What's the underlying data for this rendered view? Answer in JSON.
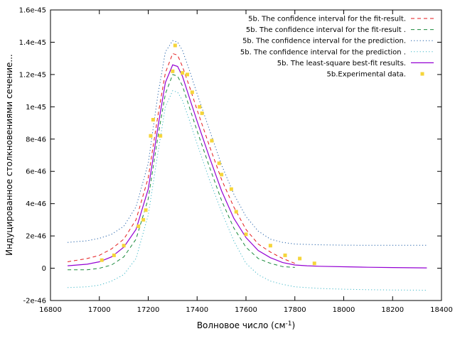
{
  "chart_data": {
    "type": "line",
    "xlabel": "Волновое число (см",
    "xlabel_sup": "-1",
    "xlabel_end": ")",
    "ylabel": "Индуцированное столкновениями сечение...",
    "xlim": [
      16800,
      18400
    ],
    "ylim": [
      -2e-46,
      1.6e-45
    ],
    "x_ticks": [
      16800,
      17000,
      17200,
      17400,
      17600,
      17800,
      18000,
      18200,
      18400
    ],
    "x_tick_labels": [
      "16800",
      "17000",
      "17200",
      "17400",
      "17600",
      "17800",
      "18000",
      "18200",
      "18400"
    ],
    "y_ticks": [
      -2e-46,
      0,
      2e-46,
      4e-46,
      6e-46,
      8e-46,
      1e-45,
      1.2e-45,
      1.4e-45,
      1.6e-45
    ],
    "y_tick_labels": [
      "-2e-46",
      "0",
      "2e-46",
      "4e-46",
      "6e-46",
      "8e-46",
      "1e-45",
      "1.2e-45",
      "1.4e-45",
      "1.6e-45"
    ],
    "grid": false,
    "legend_position": "top-right",
    "series": [
      {
        "name": "5b. The confidence interval for the fit-result.",
        "style": "dashed",
        "color": "#e41a1c",
        "x": [
          16870,
          16950,
          17000,
          17050,
          17100,
          17150,
          17200,
          17240,
          17270,
          17300,
          17320,
          17340,
          17370,
          17400,
          17450,
          17500,
          17550,
          17600,
          17650,
          17700,
          17750,
          17800
        ],
        "y": [
          4e-47,
          6e-47,
          8e-47,
          1.2e-46,
          1.8e-46,
          3e-46,
          5.6e-46,
          9.5e-46,
          1.21e-45,
          1.33e-45,
          1.32e-45,
          1.25e-45,
          1.12e-45,
          9.8e-46,
          7.6e-46,
          5.5e-46,
          3.8e-46,
          2.4e-46,
          1.5e-46,
          1e-46,
          6e-47,
          3e-47
        ]
      },
      {
        "name": "5b. The confidence interval for the fit-result .",
        "style": "dashed",
        "color": "#1a8a3c",
        "x": [
          16870,
          16950,
          17000,
          17050,
          17100,
          17150,
          17200,
          17240,
          17270,
          17300,
          17320,
          17340,
          17370,
          17400,
          17450,
          17500,
          17550,
          17600,
          17650,
          17700,
          17750,
          17800
        ],
        "y": [
          -1e-47,
          -1e-47,
          0,
          2e-47,
          7e-47,
          1.8e-46,
          4.3e-46,
          8.2e-46,
          1.08e-45,
          1.2e-45,
          1.19e-45,
          1.13e-45,
          9.9e-46,
          8.5e-46,
          6.3e-46,
          4.2e-46,
          2.5e-46,
          1.3e-46,
          6e-47,
          3e-47,
          1e-47,
          5e-48
        ]
      },
      {
        "name": "5b. The confidence interval for the prediction.",
        "style": "dotted",
        "color": "#1f5fa8",
        "x": [
          16870,
          16950,
          17000,
          17050,
          17100,
          17150,
          17200,
          17240,
          17270,
          17300,
          17320,
          17340,
          17370,
          17400,
          17450,
          17500,
          17550,
          17600,
          17650,
          17700,
          17750,
          17800,
          17900,
          18000,
          18100,
          18200,
          18340
        ],
        "y": [
          1.6e-46,
          1.7e-46,
          1.85e-46,
          2.1e-46,
          2.6e-46,
          3.8e-46,
          6.5e-46,
          1.08e-45,
          1.34e-45,
          1.41e-45,
          1.4e-45,
          1.35e-45,
          1.22e-45,
          1.08e-45,
          8.6e-46,
          6.4e-46,
          4.6e-46,
          3.2e-46,
          2.3e-46,
          1.8e-46,
          1.6e-46,
          1.5e-46,
          1.45e-46,
          1.43e-46,
          1.42e-46,
          1.42e-46,
          1.42e-46
        ]
      },
      {
        "name": "5b. The confidence interval for the prediction .",
        "style": "dotted",
        "color": "#3fb8c8",
        "x": [
          16870,
          16950,
          17000,
          17050,
          17100,
          17150,
          17200,
          17240,
          17270,
          17300,
          17320,
          17340,
          17370,
          17400,
          17450,
          17500,
          17550,
          17600,
          17650,
          17700,
          17750,
          17800,
          17900,
          18000,
          18100,
          18200,
          18340
        ],
        "y": [
          -1.2e-46,
          -1.15e-46,
          -1.05e-46,
          -8e-47,
          -4e-47,
          6e-47,
          3.3e-46,
          7.2e-46,
          1e-45,
          1.1e-45,
          1.09e-45,
          1.04e-45,
          9.1e-46,
          7.7e-46,
          5.5e-46,
          3.5e-46,
          1.7e-46,
          3e-47,
          -4e-47,
          -8e-47,
          -1e-46,
          -1.15e-46,
          -1.25e-46,
          -1.3e-46,
          -1.33e-46,
          -1.35e-46,
          -1.36e-46
        ]
      },
      {
        "name": "5b. The least-square best-fit results.",
        "style": "solid",
        "color": "#9400d3",
        "x": [
          16870,
          16950,
          17000,
          17050,
          17100,
          17150,
          17200,
          17240,
          17270,
          17300,
          17320,
          17340,
          17370,
          17400,
          17450,
          17500,
          17550,
          17600,
          17650,
          17700,
          17750,
          17800,
          17850,
          17900,
          18000,
          18100,
          18200,
          18340
        ],
        "y": [
          1.5e-47,
          2.5e-47,
          4e-47,
          7e-47,
          1.3e-46,
          2.4e-46,
          4.9e-46,
          8.8e-46,
          1.15e-45,
          1.26e-45,
          1.25e-45,
          1.19e-45,
          1.05e-45,
          9.1e-46,
          6.9e-46,
          4.8e-46,
          3.1e-46,
          1.9e-46,
          1.1e-46,
          6.5e-47,
          3.5e-47,
          2e-47,
          1.5e-47,
          1.2e-47,
          9e-48,
          6e-48,
          4e-48,
          2e-48
        ]
      }
    ],
    "points": {
      "name": "5b.Experimental data.",
      "color": "#f5d53a",
      "x": [
        17010,
        17060,
        17100,
        17160,
        17180,
        17190,
        17210,
        17220,
        17250,
        17300,
        17310,
        17340,
        17360,
        17380,
        17410,
        17420,
        17460,
        17490,
        17500,
        17540,
        17560,
        17600,
        17700,
        17760,
        17820,
        17880
      ],
      "y": [
        5e-47,
        8e-47,
        1.4e-46,
        2.6e-46,
        3e-46,
        3.6e-46,
        8.2e-46,
        9.2e-46,
        8.2e-46,
        1.22e-45,
        1.38e-45,
        1.21e-45,
        1.2e-45,
        1.09e-45,
        1e-45,
        9.6e-46,
        7.9e-46,
        6.5e-46,
        5.8e-46,
        4.9e-46,
        3.5e-46,
        2.1e-46,
        1.4e-46,
        8e-47,
        6e-47,
        3e-47
      ]
    }
  }
}
